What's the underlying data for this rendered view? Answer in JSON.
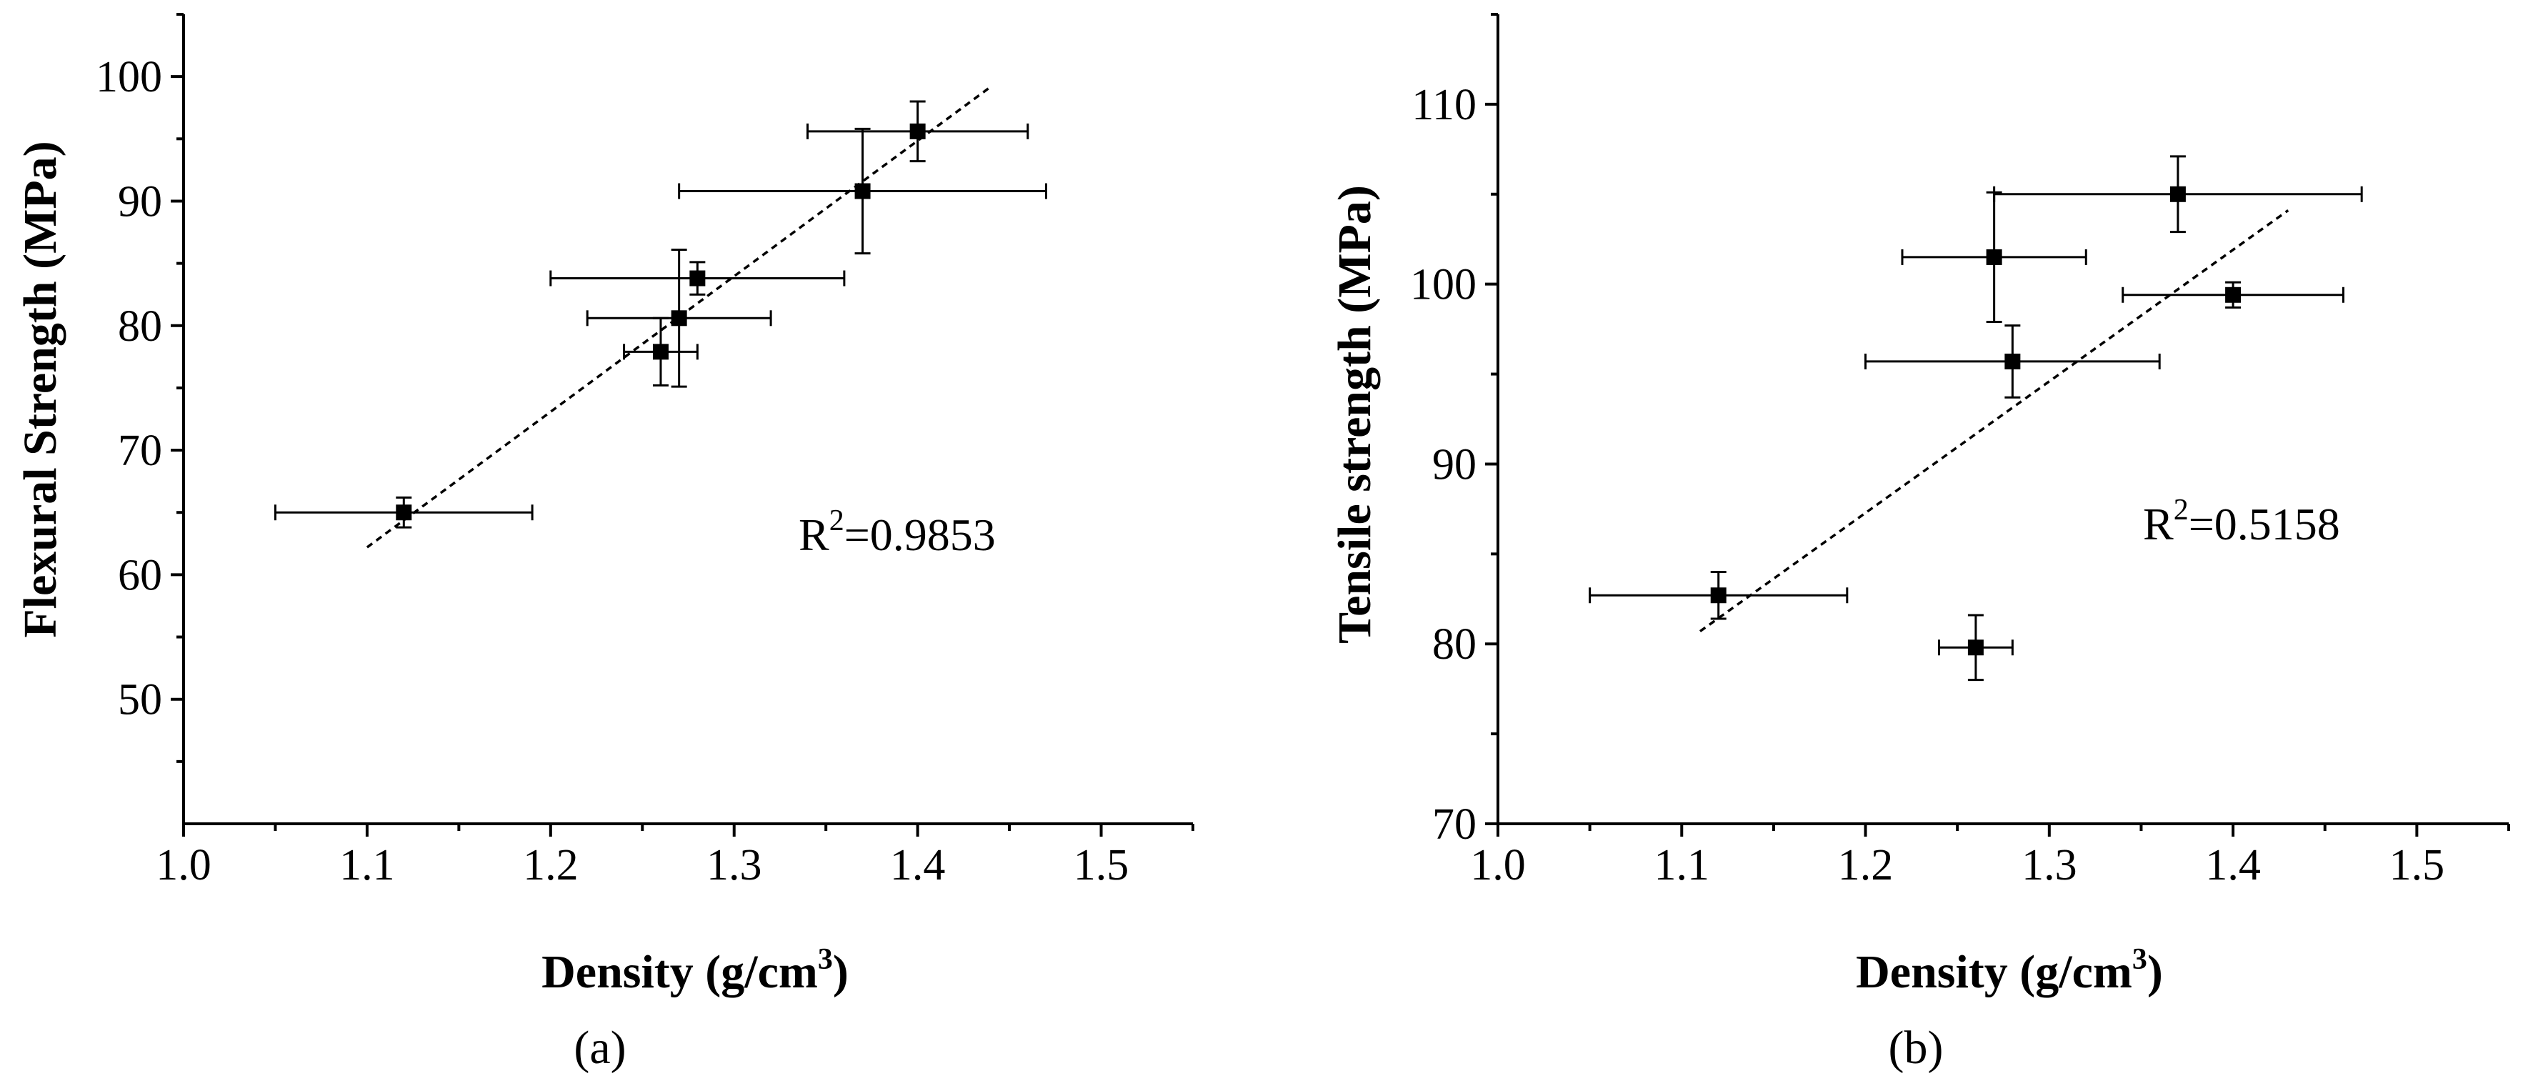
{
  "chart_data": [
    {
      "panel": "(a)",
      "type": "scatter",
      "xlabel": "Density (g/cm",
      "xlabel_sup": "3",
      "xlabel_end": ")",
      "ylabel": "Flexural Strength (MPa)",
      "xlim": [
        1.0,
        1.55
      ],
      "ylim": [
        40,
        105
      ],
      "xticks": [
        1.0,
        1.1,
        1.2,
        1.3,
        1.4,
        1.5
      ],
      "xtick_labels": [
        "1.0",
        "1.1",
        "1.2",
        "1.3",
        "1.4",
        "1.5"
      ],
      "yticks": [
        50,
        60,
        70,
        80,
        90,
        100
      ],
      "ytick_labels": [
        "50",
        "60",
        "70",
        "80",
        "90",
        "100"
      ],
      "points": [
        {
          "x": 1.12,
          "y": 65.0,
          "xerr": 0.07,
          "yerr": 1.2
        },
        {
          "x": 1.26,
          "y": 77.9,
          "xerr": 0.02,
          "yerr": 2.7
        },
        {
          "x": 1.27,
          "y": 80.6,
          "xerr": 0.05,
          "yerr": 5.5
        },
        {
          "x": 1.28,
          "y": 83.8,
          "xerr": 0.08,
          "yerr": 1.3
        },
        {
          "x": 1.37,
          "y": 90.8,
          "xerr": 0.1,
          "yerr": 5.0
        },
        {
          "x": 1.4,
          "y": 95.6,
          "xerr": 0.06,
          "yerr": 2.4
        }
      ],
      "fit_line": {
        "x": [
          1.1,
          1.44
        ],
        "y": [
          62.2,
          99.2
        ]
      },
      "annotation": {
        "prefix": "R",
        "sup": "2",
        "suffix": "=0.9853"
      }
    },
    {
      "panel": "(b)",
      "type": "scatter",
      "xlabel": "Density (g/cm",
      "xlabel_sup": "3",
      "xlabel_end": ")",
      "ylabel": "Tensile strength (MPa)",
      "xlim": [
        1.0,
        1.55
      ],
      "ylim": [
        70,
        115
      ],
      "xticks": [
        1.0,
        1.1,
        1.2,
        1.3,
        1.4,
        1.5
      ],
      "xtick_labels": [
        "1.0",
        "1.1",
        "1.2",
        "1.3",
        "1.4",
        "1.5"
      ],
      "yticks": [
        70,
        80,
        90,
        100,
        110
      ],
      "ytick_labels": [
        "70",
        "80",
        "90",
        "100",
        "110"
      ],
      "points": [
        {
          "x": 1.12,
          "y": 82.7,
          "xerr": 0.07,
          "yerr": 1.3
        },
        {
          "x": 1.26,
          "y": 79.8,
          "xerr": 0.02,
          "yerr": 1.8
        },
        {
          "x": 1.27,
          "y": 101.5,
          "xerr": 0.05,
          "yerr": 3.6
        },
        {
          "x": 1.28,
          "y": 95.7,
          "xerr": 0.08,
          "yerr": 2.0
        },
        {
          "x": 1.37,
          "y": 105.0,
          "xerr": 0.1,
          "yerr": 2.1
        },
        {
          "x": 1.4,
          "y": 99.4,
          "xerr": 0.06,
          "yerr": 0.7
        }
      ],
      "fit_line": {
        "x": [
          1.11,
          1.43
        ],
        "y": [
          80.7,
          104.1
        ]
      },
      "annotation": {
        "prefix": "R",
        "sup": "2",
        "suffix": "=0.5158"
      }
    }
  ]
}
